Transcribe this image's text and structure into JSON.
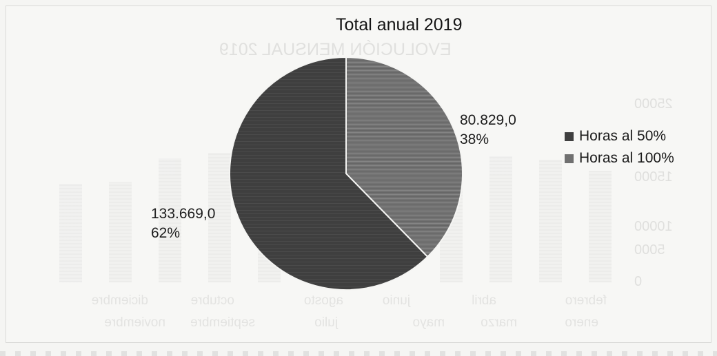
{
  "chart_data": {
    "type": "pie",
    "title": "Total anual 2019",
    "categories": [
      "Horas al 50%",
      "Horas al 100%"
    ],
    "values": [
      133669.0,
      80829.0
    ],
    "value_labels": [
      "133.669,0",
      "80.829,0"
    ],
    "percent_labels": [
      "62%",
      "38%"
    ],
    "colors": [
      "#3f3f3f",
      "#707070"
    ],
    "legend": "right"
  }
}
